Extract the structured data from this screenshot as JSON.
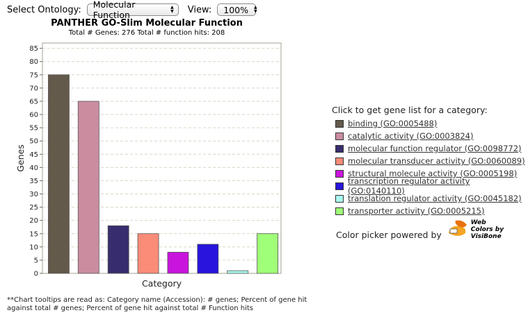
{
  "controls": {
    "ontology_label": "Select Ontology:",
    "ontology_value": "Molecular Function",
    "view_label": "View:",
    "view_value": "100%"
  },
  "legend": {
    "title": "Click to get gene list for a category:",
    "items": [
      {
        "label": "binding (GO:0005488)",
        "color": "#645a4b"
      },
      {
        "label": "catalytic activity (GO:0003824)",
        "color": "#cb8ca0"
      },
      {
        "label": "molecular function regulator (GO:0098772)",
        "color": "#372d6e"
      },
      {
        "label": "molecular transducer activity (GO:0060089)",
        "color": "#fa8c78"
      },
      {
        "label": "structural molecule activity (GO:0005198)",
        "color": "#c814dc"
      },
      {
        "label": "transcription regulator activity (GO:0140110)",
        "color": "#2814dc"
      },
      {
        "label": "translation regulator activity (GO:0045182)",
        "color": "#aafaf0"
      },
      {
        "label": "transporter activity (GO:0005215)",
        "color": "#a0ff78"
      }
    ]
  },
  "picker": {
    "text": "Color picker powered by",
    "logo_line1": "Web",
    "logo_line2": "Colors by",
    "logo_line3": "VisiBone"
  },
  "note": {
    "line1": "**Chart tooltips are read as: Category name (Accession): # genes; Percent of gene hit",
    "line2": "against total # genes; Percent of gene hit against total # Function hits"
  },
  "chart_data": {
    "type": "bar",
    "title": "PANTHER GO-Slim Molecular Function",
    "subtitle": "Total # Genes: 276    Total # function hits: 208",
    "xlabel": "Category",
    "ylabel": "Genes",
    "ylim": [
      0,
      87
    ],
    "yticks": [
      0,
      5,
      10,
      15,
      20,
      25,
      30,
      35,
      40,
      45,
      50,
      55,
      60,
      65,
      70,
      75,
      80,
      85
    ],
    "grid": true,
    "values": [
      75,
      65,
      18,
      15,
      8,
      11,
      1,
      15
    ],
    "colors": [
      "#645a4b",
      "#cb8ca0",
      "#372d6e",
      "#fa8c78",
      "#c814dc",
      "#2814dc",
      "#aafaf0",
      "#a0ff78"
    ]
  }
}
